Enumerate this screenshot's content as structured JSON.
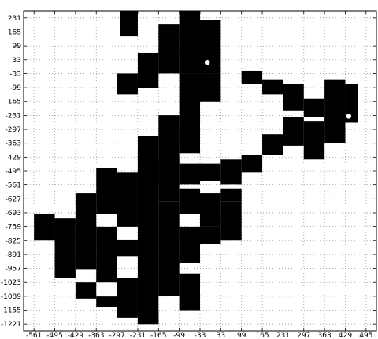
{
  "chart_data": {
    "type": "scatter",
    "title": "",
    "xlabel": "",
    "ylabel": "",
    "xlim": [
      -594,
      528
    ],
    "ylim": [
      -1254,
      264
    ],
    "grid": true,
    "x_ticks": [
      -561,
      -495,
      -429,
      -363,
      -297,
      -231,
      -165,
      -99,
      -33,
      33,
      99,
      165,
      231,
      297,
      363,
      429,
      495
    ],
    "y_ticks": [
      231,
      165,
      99,
      33,
      -33,
      -99,
      -165,
      -231,
      -297,
      -363,
      -429,
      -495,
      -561,
      -627,
      -693,
      -759,
      -825,
      -891,
      -957,
      -1023,
      -1089,
      -1155,
      -1221
    ],
    "fill_color": "#000000",
    "marker_color": "#ffffff",
    "blocks": [
      {
        "x": [
          -288,
          -231
        ],
        "y": [
          144,
          264
        ]
      },
      {
        "x": [
          -231,
          -165
        ],
        "y": [
          -99,
          66
        ]
      },
      {
        "x": [
          -165,
          -99
        ],
        "y": [
          -33,
          200
        ]
      },
      {
        "x": [
          -99,
          -33
        ],
        "y": [
          -33,
          264
        ]
      },
      {
        "x": [
          -33,
          33
        ],
        "y": [
          -33,
          220
        ]
      },
      {
        "x": [
          -99,
          -33
        ],
        "y": [
          -231,
          -33
        ]
      },
      {
        "x": [
          -33,
          33
        ],
        "y": [
          -165,
          -33
        ]
      },
      {
        "x": [
          -231,
          -165
        ],
        "y": [
          -560,
          -330
        ]
      },
      {
        "x": [
          -165,
          -99
        ],
        "y": [
          -460,
          -230
        ]
      },
      {
        "x": [
          -99,
          -33
        ],
        "y": [
          -410,
          -230
        ]
      },
      {
        "x": [
          -297,
          -231
        ],
        "y": [
          -130,
          -33
        ]
      },
      {
        "x": [
          99,
          165
        ],
        "y": [
          -80,
          -20
        ]
      },
      {
        "x": [
          165,
          231
        ],
        "y": [
          -130,
          -60
        ]
      },
      {
        "x": [
          231,
          297
        ],
        "y": [
          -210,
          -80
        ]
      },
      {
        "x": [
          297,
          363
        ],
        "y": [
          -240,
          -150
        ]
      },
      {
        "x": [
          363,
          429
        ],
        "y": [
          -363,
          -60
        ]
      },
      {
        "x": [
          429,
          470
        ],
        "y": [
          -265,
          -80
        ]
      },
      {
        "x": [
          231,
          297
        ],
        "y": [
          -375,
          -240
        ]
      },
      {
        "x": [
          297,
          363
        ],
        "y": [
          -440,
          -260
        ]
      },
      {
        "x": [
          165,
          231
        ],
        "y": [
          -420,
          -320
        ]
      },
      {
        "x": [
          99,
          165
        ],
        "y": [
          -500,
          -420
        ]
      },
      {
        "x": [
          33,
          99
        ],
        "y": [
          -560,
          -440
        ]
      },
      {
        "x": [
          -33,
          33
        ],
        "y": [
          -540,
          -460
        ]
      },
      {
        "x": [
          -99,
          -33
        ],
        "y": [
          -560,
          -460
        ]
      },
      {
        "x": [
          -165,
          -99
        ],
        "y": [
          -640,
          -440
        ]
      },
      {
        "x": [
          -231,
          -165
        ],
        "y": [
          -1221,
          -440
        ]
      },
      {
        "x": [
          -297,
          -231
        ],
        "y": [
          -760,
          -500
        ]
      },
      {
        "x": [
          -363,
          -297
        ],
        "y": [
          -700,
          -480
        ]
      },
      {
        "x": [
          -429,
          -363
        ],
        "y": [
          -960,
          -600
        ]
      },
      {
        "x": [
          -495,
          -429
        ],
        "y": [
          -1000,
          -720
        ]
      },
      {
        "x": [
          -561,
          -495
        ],
        "y": [
          -825,
          -700
        ]
      },
      {
        "x": [
          -363,
          -297
        ],
        "y": [
          -1023,
          -760
        ]
      },
      {
        "x": [
          -429,
          -363
        ],
        "y": [
          -1100,
          -1023
        ]
      },
      {
        "x": [
          -363,
          -297
        ],
        "y": [
          -1140,
          -1090
        ]
      },
      {
        "x": [
          -297,
          -231
        ],
        "y": [
          -1190,
          -1000
        ]
      },
      {
        "x": [
          -297,
          -231
        ],
        "y": [
          -900,
          -820
        ]
      },
      {
        "x": [
          -165,
          -99
        ],
        "y": [
          -1089,
          -700
        ]
      },
      {
        "x": [
          -99,
          -33
        ],
        "y": [
          -1155,
          -980
        ]
      },
      {
        "x": [
          -99,
          -33
        ],
        "y": [
          -930,
          -760
        ]
      },
      {
        "x": [
          -165,
          -99
        ],
        "y": [
          -700,
          -640
        ]
      },
      {
        "x": [
          -33,
          33
        ],
        "y": [
          -760,
          -600
        ]
      },
      {
        "x": [
          -33,
          33
        ],
        "y": [
          -840,
          -760
        ]
      },
      {
        "x": [
          33,
          99
        ],
        "y": [
          -825,
          -640
        ]
      },
      {
        "x": [
          33,
          99
        ],
        "y": [
          -640,
          -580
        ]
      },
      {
        "x": [
          -99,
          -33
        ],
        "y": [
          -700,
          -580
        ]
      },
      {
        "x": [
          -231,
          -165
        ],
        "y": [
          -1221,
          -1155
        ]
      }
    ],
    "markers": [
      {
        "x": -10,
        "y": 20
      },
      {
        "x": 440,
        "y": -235
      }
    ]
  }
}
